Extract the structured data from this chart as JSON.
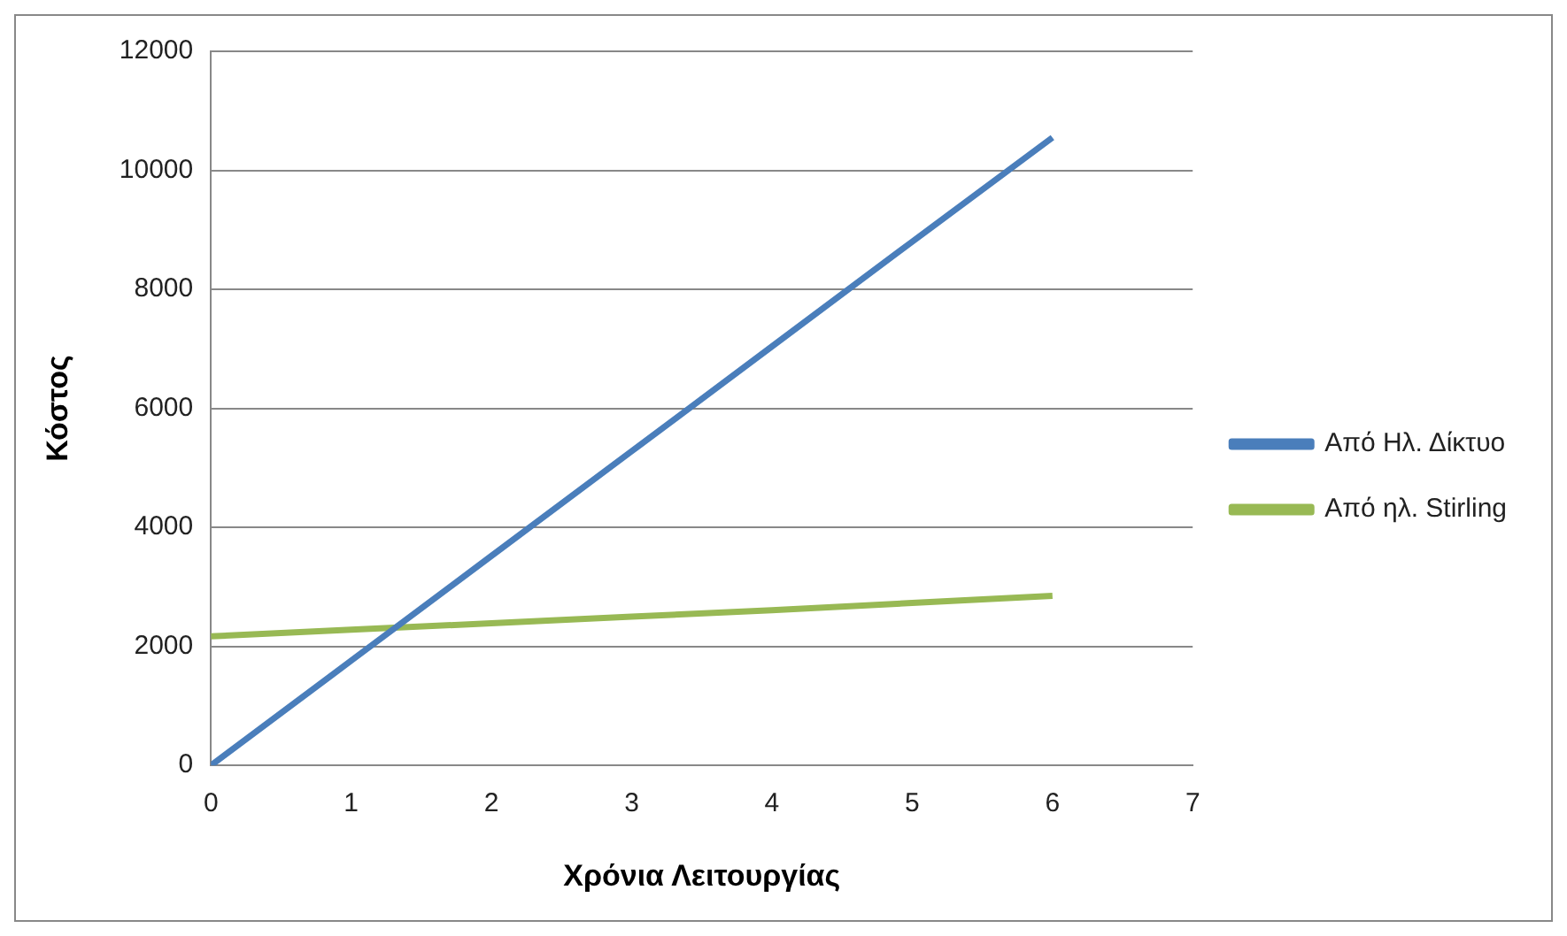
{
  "chart_data": {
    "type": "line",
    "xlabel": "Χρόνια Λειτουργίας",
    "ylabel": "Κόστος",
    "x": [
      0,
      1,
      2,
      3,
      4,
      5,
      6
    ],
    "series": [
      {
        "name": "Από Ηλ. Δίκτυο",
        "color": "#4a7ebb",
        "values": [
          0,
          1760,
          3520,
          5280,
          7040,
          8800,
          10550
        ]
      },
      {
        "name": "Από ηλ. Stirling",
        "color": "#98b954",
        "values": [
          2170,
          2280,
          2390,
          2500,
          2610,
          2730,
          2850
        ]
      }
    ],
    "xlim": [
      0,
      7
    ],
    "xticks": [
      0,
      1,
      2,
      3,
      4,
      5,
      6,
      7
    ],
    "ylim": [
      0,
      12000
    ],
    "yticks": [
      0,
      2000,
      4000,
      6000,
      8000,
      10000,
      12000
    ],
    "grid": "y",
    "legend": "right",
    "marker": "none",
    "line_style": "solid"
  }
}
